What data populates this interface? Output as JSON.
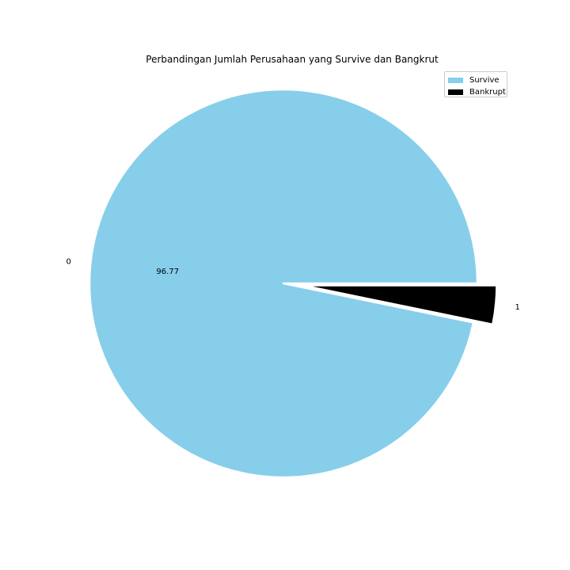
{
  "chart_data": {
    "type": "pie",
    "title": "Perbandingan Jumlah Perusahaan yang Survive dan Bangkrut",
    "slices": [
      {
        "label": "0",
        "value": 96.77,
        "pct_label": "96.77",
        "color": "#87ceeb",
        "exploded": false
      },
      {
        "label": "1",
        "value": 3.23,
        "pct_label": "",
        "color": "#000000",
        "exploded": true
      }
    ],
    "legend": {
      "placement": "top-right",
      "entries": [
        {
          "label": "Survive",
          "color": "#87ceeb"
        },
        {
          "label": "Bankrupt",
          "color": "#000000"
        }
      ]
    }
  }
}
